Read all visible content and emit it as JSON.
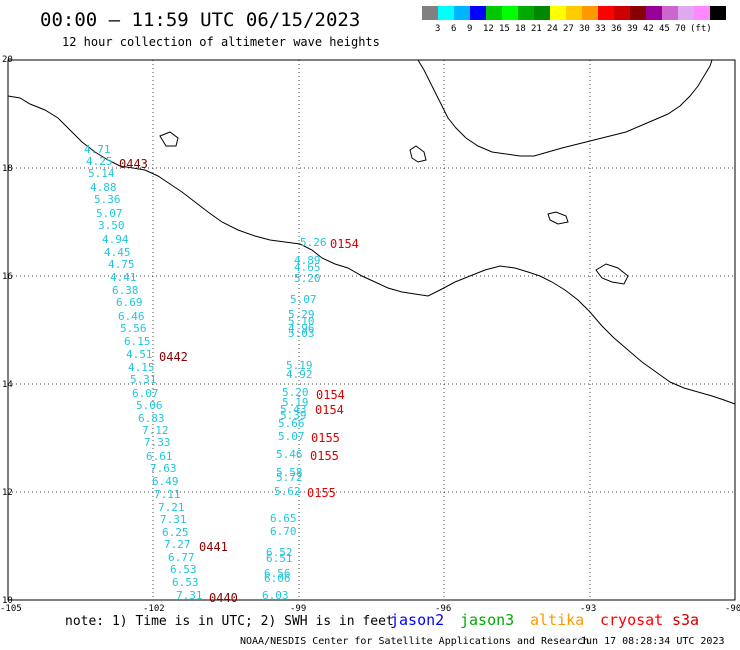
{
  "header": {
    "title": "00:00 – 11:59 UTC 06/15/2023",
    "subtitle": "12 hour collection of altimeter wave heights"
  },
  "color_scale": {
    "colors": [
      "#808080",
      "#00ffff",
      "#00b4ff",
      "#0000ff",
      "#00c800",
      "#00ff00",
      "#00aa00",
      "#008800",
      "#ffff00",
      "#ffcc00",
      "#ff9900",
      "#ff0000",
      "#cc0000",
      "#880000",
      "#990099",
      "#cc66cc",
      "#ddaaee",
      "#ff88ff",
      "#000000"
    ],
    "labels": [
      "3",
      "6",
      "9",
      "12",
      "15",
      "18",
      "21",
      "24",
      "27",
      "30",
      "33",
      "36",
      "39",
      "42",
      "45",
      "70",
      "(ft)"
    ]
  },
  "axes": {
    "lon_ticks": [
      "-105",
      "-102",
      "-99",
      "-96",
      "-93",
      "-90"
    ],
    "lat_ticks": [
      "20",
      "18",
      "16",
      "14",
      "12",
      "10"
    ],
    "lon_range": [
      -105,
      -90
    ],
    "lat_range": [
      10,
      20
    ]
  },
  "swh_values": [
    "4.71",
    "4.25",
    "5.14",
    "4.88",
    "5.36",
    "5.07",
    "3.50",
    "4.94",
    "4.45",
    "4.75",
    "4.41",
    "6.38",
    "6.69",
    "6.46",
    "5.56",
    "6.15",
    "4.51",
    "4.15",
    "5.31",
    "6.07",
    "5.06",
    "6.83",
    "7.12",
    "7.33",
    "6.61",
    "7.63",
    "6.49",
    "7.11",
    "7.21",
    "7.31",
    "6.25",
    "7.27",
    "6.77",
    "6.53",
    "6.53",
    "7.31",
    "5.26",
    "4.89",
    "4.65",
    "5.20",
    "5.07",
    "5.29",
    "5.10",
    "4.96",
    "5.03",
    "5.19",
    "4.92",
    "5.20",
    "5.19",
    "5.43",
    "5.39",
    "5.66",
    "5.07",
    "5.46",
    "5.58",
    "5.72",
    "5.62",
    "6.65",
    "6.70",
    "6.52",
    "6.51",
    "6.56",
    "6.06",
    "6.03"
  ],
  "pass_tags": [
    {
      "text": "0443",
      "color": "#880000"
    },
    {
      "text": "0442",
      "color": "#880000"
    },
    {
      "text": "0441",
      "color": "#880000"
    },
    {
      "text": "0440",
      "color": "#880000"
    },
    {
      "text": "0154",
      "color": "#dd0000"
    },
    {
      "text": "0154",
      "color": "#dd0000"
    },
    {
      "text": "0154",
      "color": "#dd0000"
    },
    {
      "text": "0155",
      "color": "#dd0000"
    },
    {
      "text": "0155",
      "color": "#dd0000"
    },
    {
      "text": "0155",
      "color": "#dd0000"
    }
  ],
  "footer": {
    "note": "note: 1) Time is in UTC; 2) SWH is in feet",
    "missions": [
      {
        "name": "jason2",
        "color": "#0000ff"
      },
      {
        "name": "jason3",
        "color": "#00aa00"
      },
      {
        "name": "altika",
        "color": "#ff9900"
      },
      {
        "name": "cryosat",
        "color": "#ff0000"
      },
      {
        "name": "s3a",
        "color": "#cc0000"
      }
    ],
    "credit": "NOAA/NESDIS Center for Satellite Applications and Research",
    "timestamp": "Jun 17 08:28:34 UTC 2023"
  }
}
